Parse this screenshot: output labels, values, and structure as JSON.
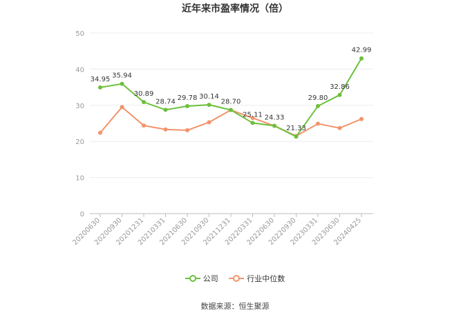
{
  "title": "近年来市盈率情况（倍）",
  "source": "数据来源：恒生聚源",
  "chart_data": {
    "type": "line",
    "title": "近年来市盈率情况（倍）",
    "xlabel": "",
    "ylabel": "",
    "ylim": [
      0,
      50
    ],
    "yticks": [
      0,
      10,
      20,
      30,
      40,
      50
    ],
    "grid": true,
    "legend_position": "bottom",
    "categories": [
      "20200630",
      "20200930",
      "20201231",
      "20210331",
      "20210630",
      "20210930",
      "20211231",
      "20220331",
      "20220630",
      "20220930",
      "20230331",
      "20230630",
      "20240425"
    ],
    "series": [
      {
        "name": "公司",
        "color": "#6cc03c",
        "values": [
          34.95,
          35.94,
          30.89,
          28.74,
          29.78,
          30.14,
          28.7,
          25.11,
          24.33,
          21.33,
          29.8,
          32.86,
          42.99
        ],
        "labels": [
          "34.95",
          "35.94",
          "30.89",
          "28.74",
          "29.78",
          "30.14",
          "28.70",
          "25.11",
          "24.33",
          "21.33",
          "29.80",
          "32.86",
          "42.99"
        ]
      },
      {
        "name": "行业中位数",
        "color": "#f3936b",
        "values": [
          22.4,
          29.5,
          24.4,
          23.3,
          23.1,
          25.3,
          28.7,
          26.5,
          24.3,
          21.5,
          24.9,
          23.7,
          26.2
        ]
      }
    ]
  }
}
